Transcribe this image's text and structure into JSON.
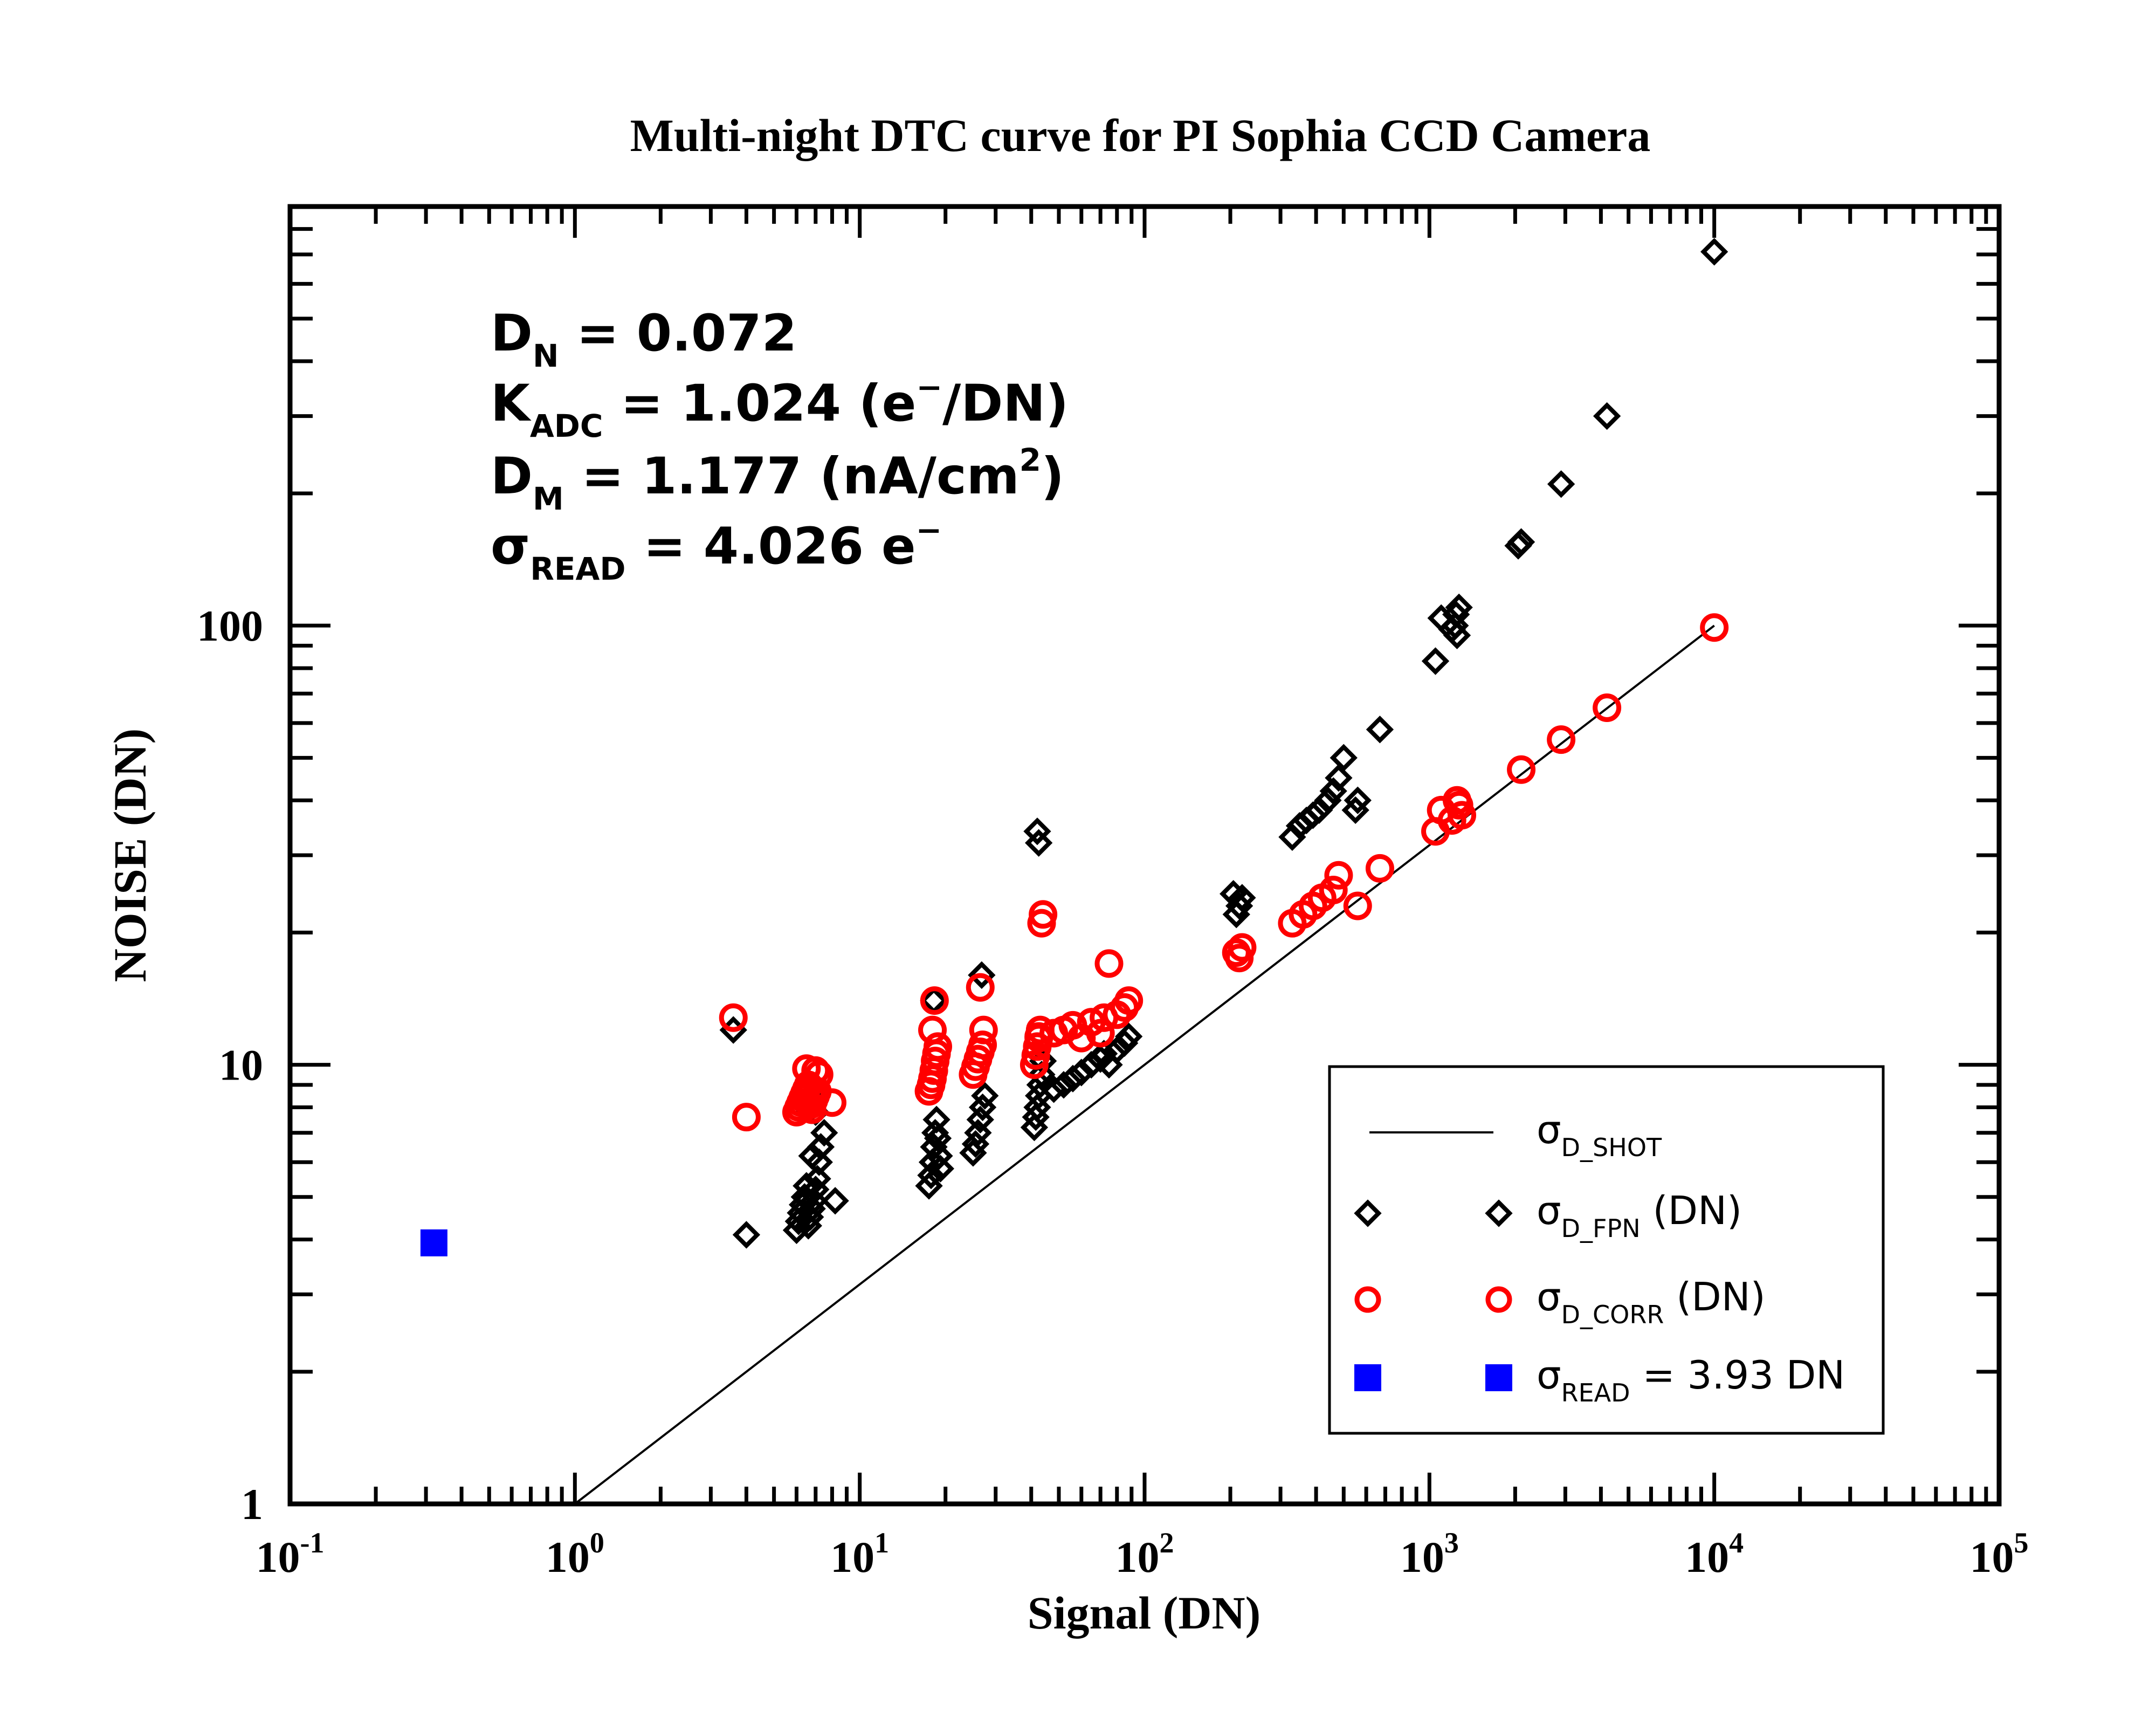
{
  "chart_data": {
    "type": "scatter",
    "title": "Multi-night DTC curve for PI Sophia CCD Camera",
    "xlabel": "Signal (DN)",
    "ylabel": "NOISE (DN)",
    "xscale": "log",
    "yscale": "log",
    "xlim": [
      0.1,
      100000
    ],
    "ylim": [
      1,
      900
    ],
    "x_ticks": [
      {
        "base": "10",
        "exp": "-1",
        "value": 0.1
      },
      {
        "base": "10",
        "exp": "0",
        "value": 1
      },
      {
        "base": "10",
        "exp": "1",
        "value": 10
      },
      {
        "base": "10",
        "exp": "2",
        "value": 100
      },
      {
        "base": "10",
        "exp": "3",
        "value": 1000
      },
      {
        "base": "10",
        "exp": "4",
        "value": 10000
      },
      {
        "base": "10",
        "exp": "5",
        "value": 100000
      }
    ],
    "y_ticks": [
      {
        "label": "1",
        "value": 1
      },
      {
        "label": "10",
        "value": 10
      },
      {
        "label": "100",
        "value": 100
      }
    ],
    "annotations": [
      {
        "symbol": "D",
        "sub": "N",
        "text": " = 0.072",
        "sup": "",
        "after": ""
      },
      {
        "symbol": "K",
        "sub": "ADC",
        "text": " = 1.024 (e",
        "sup": "−",
        "after": "/DN)"
      },
      {
        "symbol": "D",
        "sub": "M",
        "text": " = 1.177 (nA/cm",
        "sup": "2",
        "after": ")"
      },
      {
        "symbol": "σ",
        "sub": "READ",
        "text": " = 4.026 e",
        "sup": "−",
        "after": ""
      }
    ],
    "legend_position": "bottom-right",
    "legend": [
      {
        "symbol": "σ",
        "sub": "D_SHOT",
        "suffix": ""
      },
      {
        "symbol": "σ",
        "sub": "D_FPN",
        "suffix": " (DN)"
      },
      {
        "symbol": "σ",
        "sub": "D_CORR",
        "suffix": " (DN)"
      },
      {
        "symbol": "σ",
        "sub": "READ",
        "suffix": " = 3.93 DN"
      }
    ],
    "colors": {
      "fpn": "#000000",
      "corr": "#ff0000",
      "read": "#0000ff",
      "shot": "#000000"
    },
    "series": [
      {
        "key": "shot",
        "type": "line",
        "x": [
          1,
          10000
        ],
        "y": [
          1,
          100
        ]
      },
      {
        "key": "fpn",
        "type": "scatter",
        "marker": "diamond",
        "x": [
          3.6,
          4.0,
          6.0,
          6.1,
          6.2,
          6.3,
          6.4,
          6.5,
          6.6,
          6.7,
          6.8,
          6.9,
          7.0,
          7.1,
          7.2,
          7.3,
          7.5,
          7.0,
          6.9,
          8.2,
          6.5,
          6.8,
          17.5,
          17.8,
          18.0,
          18.2,
          18.4,
          18.6,
          18.8,
          19.0,
          19.2,
          18.2,
          25.0,
          25.5,
          26.0,
          26.5,
          27.0,
          27.5,
          26.8,
          41.0,
          41.5,
          42.0,
          42.5,
          43.0,
          43.5,
          44.0,
          42.0,
          42.5,
          48.0,
          52.0,
          56.0,
          60.0,
          65.0,
          70.0,
          72.0,
          75.0,
          80.0,
          85.0,
          88.0,
          210.0,
          215.0,
          220.0,
          205.0,
          330.0,
          350.0,
          370.0,
          390.0,
          410.0,
          440.0,
          460.0,
          480.0,
          500.0,
          550.0,
          560.0,
          670.0,
          1050.0,
          1100.0,
          1200.0,
          1250.0,
          1270.0,
          1240.0,
          1230.0,
          2050.0,
          2100.0,
          2900.0,
          4200.0,
          10000.0
        ],
        "y": [
          12.0,
          4.1,
          4.2,
          4.4,
          4.6,
          4.8,
          5.0,
          5.3,
          4.3,
          4.5,
          4.7,
          4.9,
          5.2,
          5.5,
          6.0,
          6.5,
          7.0,
          7.8,
          8.3,
          4.9,
          8.0,
          6.2,
          5.3,
          5.6,
          6.0,
          6.5,
          7.0,
          7.5,
          6.8,
          6.2,
          5.8,
          14.0,
          6.3,
          6.6,
          7.0,
          7.5,
          8.0,
          8.5,
          16.0,
          7.2,
          7.6,
          8.0,
          8.5,
          9.0,
          9.5,
          10.2,
          34.0,
          32.0,
          8.8,
          9.0,
          9.3,
          9.6,
          10.0,
          10.3,
          10.6,
          10.0,
          10.8,
          11.2,
          11.6,
          22.0,
          23.0,
          24.0,
          24.5,
          33.0,
          35.0,
          36.0,
          37.0,
          38.0,
          40.0,
          42.0,
          45.0,
          50.0,
          38.0,
          40.0,
          58.0,
          83.0,
          104.0,
          98.0,
          95.0,
          110.0,
          106.0,
          100.0,
          152.0,
          155.0,
          210.0,
          300.0,
          710.0
        ]
      },
      {
        "key": "corr",
        "type": "scatter",
        "marker": "circle",
        "x": [
          3.6,
          4.0,
          6.0,
          6.1,
          6.2,
          6.3,
          6.4,
          6.5,
          6.6,
          6.7,
          6.8,
          6.9,
          7.0,
          7.1,
          7.2,
          6.5,
          7.0,
          8.0,
          17.5,
          17.8,
          18.0,
          18.2,
          18.4,
          18.6,
          18.8,
          18.3,
          18.0,
          25.0,
          25.5,
          26.0,
          26.5,
          27.0,
          27.2,
          26.5,
          41.0,
          41.5,
          42.0,
          42.5,
          43.0,
          43.5,
          44.0,
          42.5,
          48.0,
          52.0,
          56.0,
          60.0,
          65.0,
          70.0,
          72.0,
          75.0,
          80.0,
          85.0,
          88.0,
          210.0,
          215.0,
          220.0,
          330.0,
          360.0,
          390.0,
          420.0,
          460.0,
          480.0,
          560.0,
          670.0,
          1050.0,
          1100.0,
          1200.0,
          1250.0,
          1300.0,
          1270.0,
          2100.0,
          2900.0,
          4200.0,
          10000.0
        ],
        "y": [
          12.8,
          7.6,
          7.8,
          8.0,
          8.2,
          8.4,
          8.6,
          8.8,
          9.0,
          8.1,
          7.9,
          8.3,
          8.5,
          8.7,
          9.5,
          9.8,
          9.7,
          8.2,
          8.7,
          9.0,
          9.3,
          9.7,
          10.2,
          10.6,
          11.0,
          14.0,
          12.0,
          9.5,
          9.9,
          10.3,
          10.7,
          11.1,
          12.0,
          15.0,
          10.0,
          10.5,
          11.0,
          11.5,
          12.0,
          21.0,
          22.0,
          11.6,
          11.8,
          12.0,
          12.3,
          11.5,
          12.5,
          11.8,
          12.8,
          17.0,
          13.0,
          13.5,
          14.0,
          18.0,
          17.5,
          18.5,
          21.0,
          22.0,
          23.0,
          24.0,
          25.0,
          27.0,
          23.0,
          28.0,
          34.0,
          38.0,
          36.0,
          40.0,
          37.0,
          39.0,
          47.0,
          55.0,
          65.0,
          99.0
        ]
      },
      {
        "key": "read",
        "type": "scatter",
        "marker": "square",
        "x": [
          0.32
        ],
        "y": [
          3.93
        ]
      }
    ]
  }
}
